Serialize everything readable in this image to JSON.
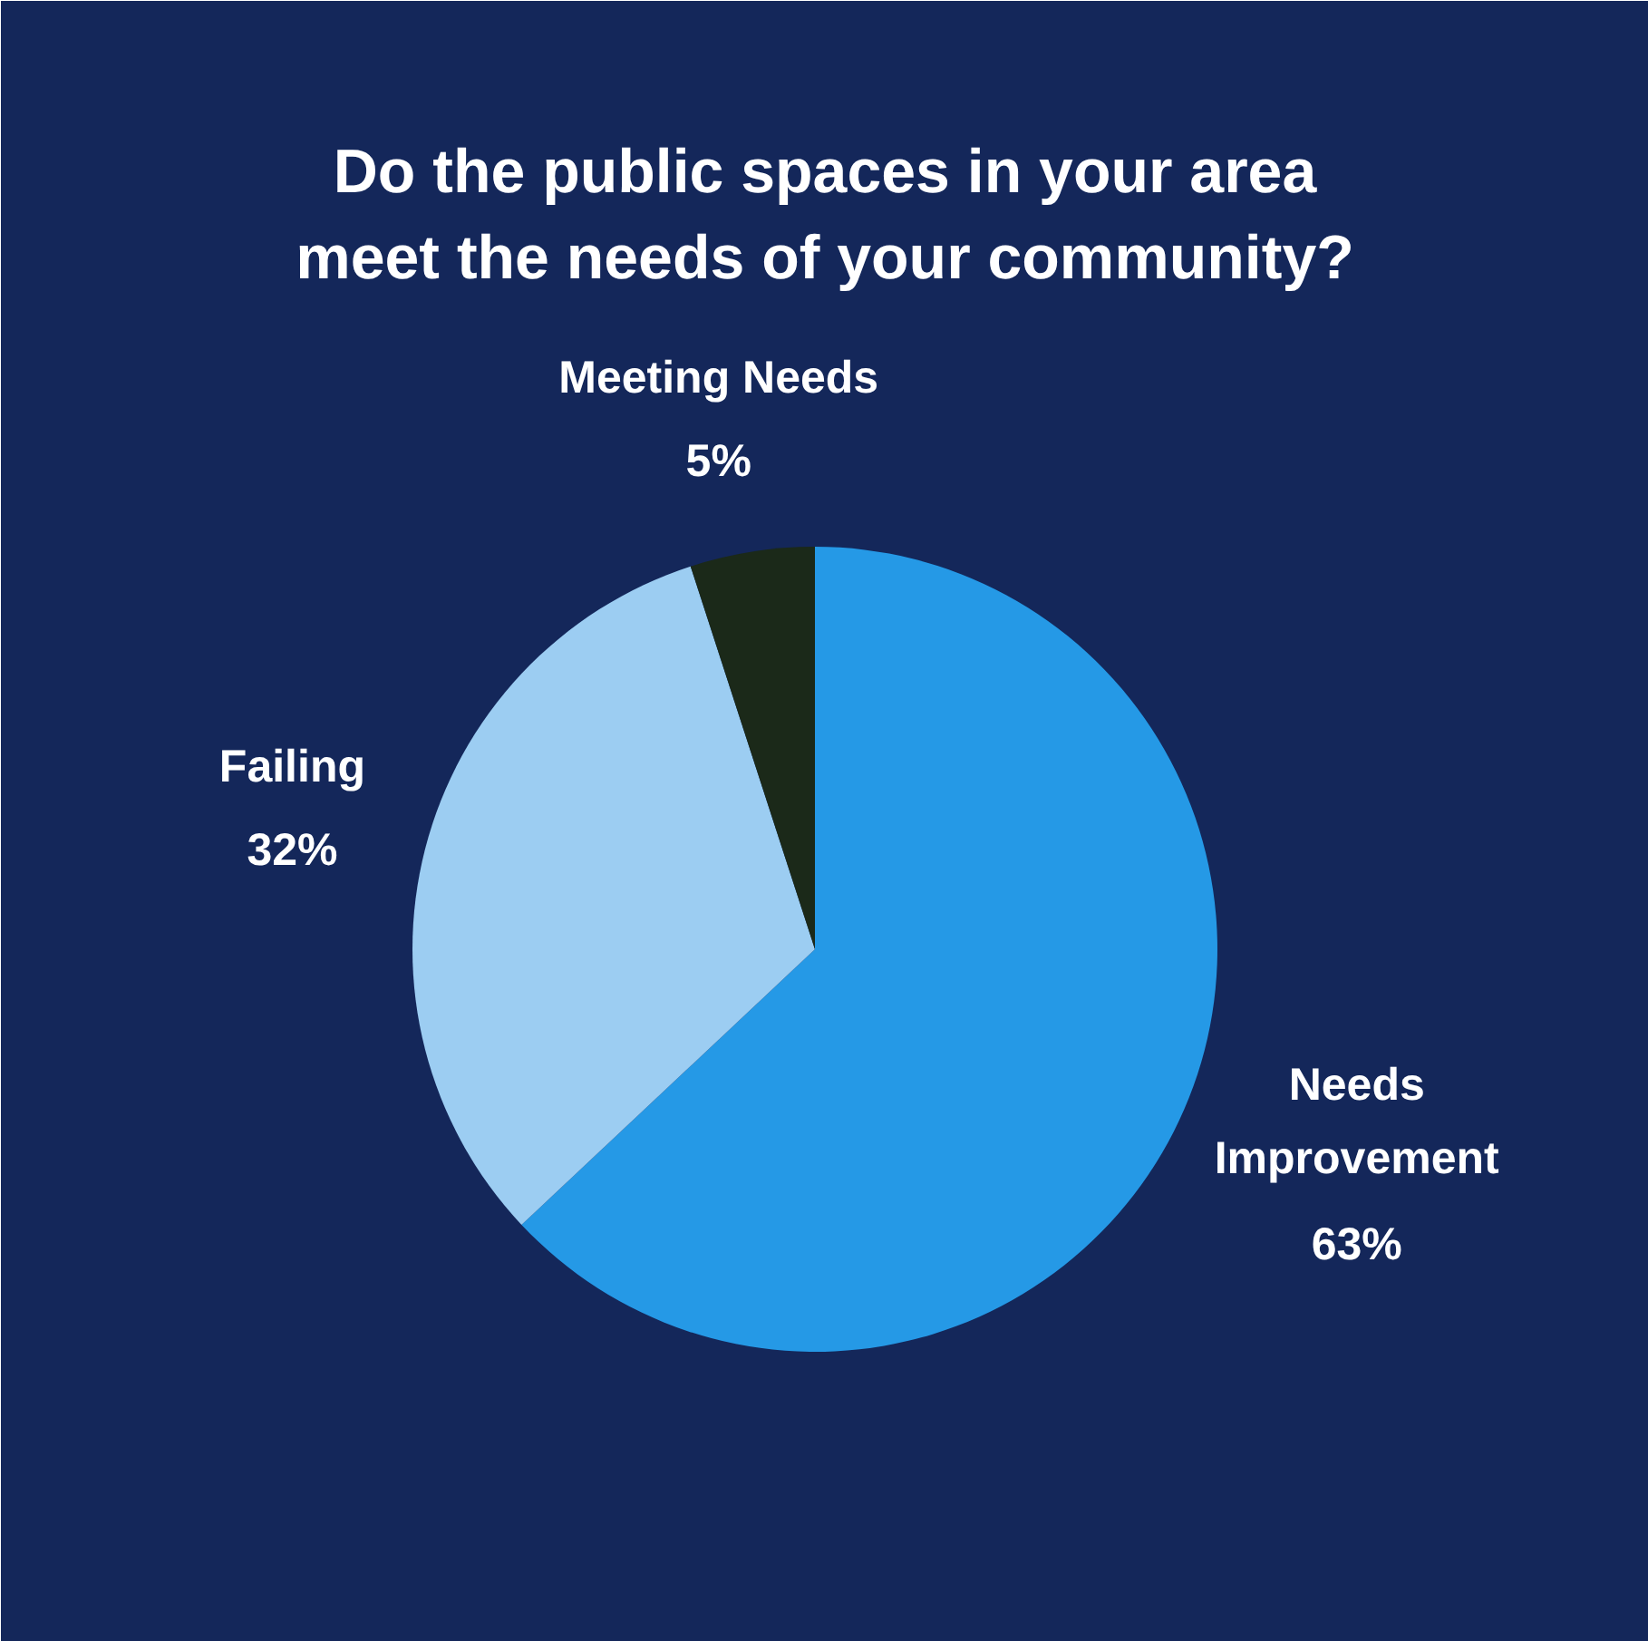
{
  "chart_data": {
    "type": "pie",
    "title": "Do the public spaces in your area meet the needs of your community?",
    "categories": [
      "Needs Improvement",
      "Failing",
      "Meeting Needs"
    ],
    "values": [
      63,
      32,
      5
    ],
    "colors": [
      "#2599e6",
      "#9ccdf2",
      "#1b2919"
    ],
    "value_labels": [
      "63%",
      "32%",
      "5%"
    ]
  }
}
